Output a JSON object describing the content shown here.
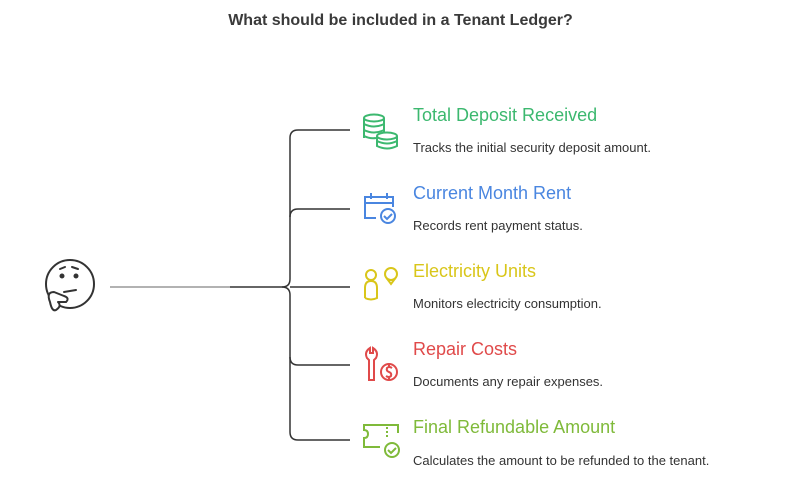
{
  "title": "What should be included in a Tenant Ledger?",
  "center_icon": "thinking-face-icon",
  "items": [
    {
      "title": "Total Deposit Received",
      "description": "Tracks the initial security deposit amount.",
      "color": "#3cb86f",
      "icon": "coins-icon"
    },
    {
      "title": "Current Month Rent",
      "description": "Records rent payment status.",
      "color": "#4a86e0",
      "icon": "calendar-check-icon"
    },
    {
      "title": "Electricity Units",
      "description": "Monitors electricity consumption.",
      "color": "#d9c61a",
      "icon": "person-lightbulb-icon"
    },
    {
      "title": "Repair Costs",
      "description": "Documents any repair expenses.",
      "color": "#e04a4a",
      "icon": "wrench-dollar-icon"
    },
    {
      "title": "Final Refundable Amount",
      "description": "Calculates the amount to be refunded to the tenant.",
      "color": "#7fba3a",
      "icon": "ticket-check-icon"
    }
  ]
}
